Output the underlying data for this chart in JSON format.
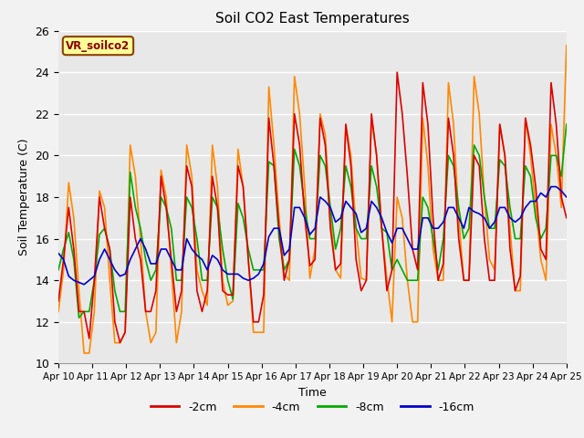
{
  "title": "Soil CO2 East Temperatures",
  "xlabel": "Time",
  "ylabel": "Soil Temperature (C)",
  "annotation": "VR_soilco2",
  "ylim": [
    10,
    26
  ],
  "background_color": "#e8e8e8",
  "grid_color": "#ffffff",
  "legend_entries": [
    "-2cm",
    "-4cm",
    "-8cm",
    "-16cm"
  ],
  "line_colors": [
    "#dd0000",
    "#ff8800",
    "#00aa00",
    "#0000cc"
  ],
  "line_width": 1.2,
  "tick_labels": [
    "Apr 10",
    "Apr 11",
    "Apr 12",
    "Apr 13",
    "Apr 14",
    "Apr 15",
    "Apr 16",
    "Apr 17",
    "Apr 18",
    "Apr 19",
    "Apr 20",
    "Apr 21",
    "Apr 22",
    "Apr 23",
    "Apr 24",
    "Apr 25"
  ],
  "series_2cm": [
    13.0,
    15.0,
    17.5,
    15.5,
    12.5,
    12.5,
    11.2,
    14.0,
    18.0,
    16.5,
    15.5,
    12.0,
    11.0,
    11.5,
    18.0,
    16.0,
    15.0,
    12.5,
    12.5,
    13.5,
    19.0,
    17.5,
    15.0,
    12.5,
    13.5,
    19.5,
    18.5,
    13.5,
    12.5,
    13.5,
    19.0,
    17.5,
    13.5,
    13.3,
    13.3,
    19.5,
    18.5,
    15.0,
    12.0,
    12.0,
    13.3,
    21.8,
    19.5,
    16.5,
    14.0,
    15.0,
    22.0,
    20.5,
    17.0,
    14.7,
    15.0,
    21.8,
    20.5,
    16.5,
    14.5,
    14.8,
    21.5,
    19.5,
    15.0,
    13.5,
    14.0,
    22.0,
    20.0,
    16.5,
    13.5,
    14.5,
    24.0,
    22.0,
    19.0,
    15.5,
    14.5,
    23.5,
    21.5,
    17.0,
    14.0,
    14.8,
    21.8,
    20.0,
    16.0,
    14.0,
    14.0,
    20.0,
    19.5,
    16.0,
    14.0,
    14.0,
    21.5,
    20.0,
    15.5,
    13.5,
    14.2,
    21.8,
    20.5,
    18.5,
    15.5,
    15.0,
    23.5,
    21.5,
    18.0,
    17.0
  ],
  "series_4cm": [
    12.5,
    14.5,
    18.7,
    17.0,
    13.5,
    10.5,
    10.5,
    12.5,
    18.3,
    17.5,
    14.0,
    11.0,
    11.0,
    11.5,
    20.5,
    19.0,
    16.0,
    12.5,
    11.0,
    11.5,
    19.3,
    18.0,
    14.5,
    11.0,
    12.5,
    20.5,
    19.0,
    14.5,
    13.5,
    12.8,
    20.5,
    18.5,
    14.0,
    12.8,
    13.0,
    20.3,
    18.5,
    15.0,
    11.5,
    11.5,
    11.5,
    23.3,
    20.5,
    17.0,
    14.3,
    14.0,
    23.8,
    22.0,
    18.5,
    14.1,
    15.5,
    22.0,
    21.0,
    17.0,
    14.5,
    14.1,
    21.5,
    20.0,
    16.5,
    14.1,
    14.0,
    21.8,
    20.0,
    16.5,
    14.1,
    12.0,
    18.0,
    17.0,
    14.0,
    12.0,
    12.0,
    21.8,
    19.5,
    15.5,
    14.0,
    14.0,
    23.5,
    21.5,
    17.0,
    14.0,
    14.0,
    23.8,
    22.0,
    18.0,
    15.0,
    14.5,
    21.5,
    20.0,
    16.5,
    13.5,
    13.5,
    21.8,
    20.0,
    17.5,
    15.0,
    14.0,
    21.5,
    20.0,
    17.5,
    25.3
  ],
  "series_8cm": [
    14.5,
    15.5,
    16.3,
    15.0,
    12.2,
    12.5,
    12.5,
    14.0,
    16.2,
    16.5,
    15.5,
    13.5,
    12.5,
    12.5,
    19.2,
    17.5,
    16.5,
    15.0,
    14.0,
    14.5,
    18.0,
    17.5,
    16.5,
    14.0,
    14.0,
    18.0,
    17.5,
    16.0,
    14.0,
    14.0,
    18.0,
    17.5,
    15.5,
    14.0,
    13.1,
    17.7,
    17.0,
    15.5,
    14.5,
    14.5,
    14.5,
    19.7,
    19.5,
    16.0,
    14.5,
    15.0,
    20.3,
    19.5,
    17.5,
    16.0,
    16.0,
    20.0,
    19.5,
    17.5,
    15.5,
    16.5,
    19.5,
    18.5,
    16.5,
    16.0,
    16.0,
    19.5,
    18.5,
    16.5,
    16.3,
    14.5,
    15.0,
    14.5,
    14.0,
    14.0,
    14.0,
    18.0,
    17.5,
    16.0,
    14.5,
    16.0,
    20.0,
    19.5,
    17.5,
    16.0,
    16.5,
    20.5,
    20.0,
    18.0,
    16.5,
    16.5,
    19.8,
    19.5,
    17.5,
    16.0,
    16.0,
    19.5,
    19.0,
    17.0,
    16.0,
    16.5,
    20.0,
    20.0,
    19.0,
    21.5
  ],
  "series_16cm": [
    15.3,
    15.0,
    14.2,
    14.0,
    13.9,
    13.8,
    14.0,
    14.2,
    15.0,
    15.5,
    15.0,
    14.5,
    14.2,
    14.3,
    15.0,
    15.5,
    16.0,
    15.5,
    14.8,
    14.8,
    15.5,
    15.5,
    15.0,
    14.5,
    14.5,
    16.0,
    15.5,
    15.2,
    15.0,
    14.5,
    15.2,
    15.0,
    14.5,
    14.3,
    14.3,
    14.3,
    14.1,
    14.0,
    14.1,
    14.3,
    14.8,
    16.1,
    16.5,
    16.5,
    15.2,
    15.5,
    17.5,
    17.5,
    17.0,
    16.2,
    16.5,
    18.0,
    17.8,
    17.5,
    16.8,
    17.0,
    17.8,
    17.5,
    17.2,
    16.3,
    16.5,
    17.8,
    17.5,
    17.0,
    16.3,
    15.8,
    16.5,
    16.5,
    16.0,
    15.5,
    15.5,
    17.0,
    17.0,
    16.5,
    16.5,
    16.8,
    17.5,
    17.5,
    17.0,
    16.5,
    17.5,
    17.3,
    17.2,
    17.0,
    16.5,
    16.8,
    17.5,
    17.5,
    17.0,
    16.8,
    17.0,
    17.5,
    17.8,
    17.8,
    18.2,
    18.0,
    18.5,
    18.5,
    18.3,
    18.0
  ]
}
